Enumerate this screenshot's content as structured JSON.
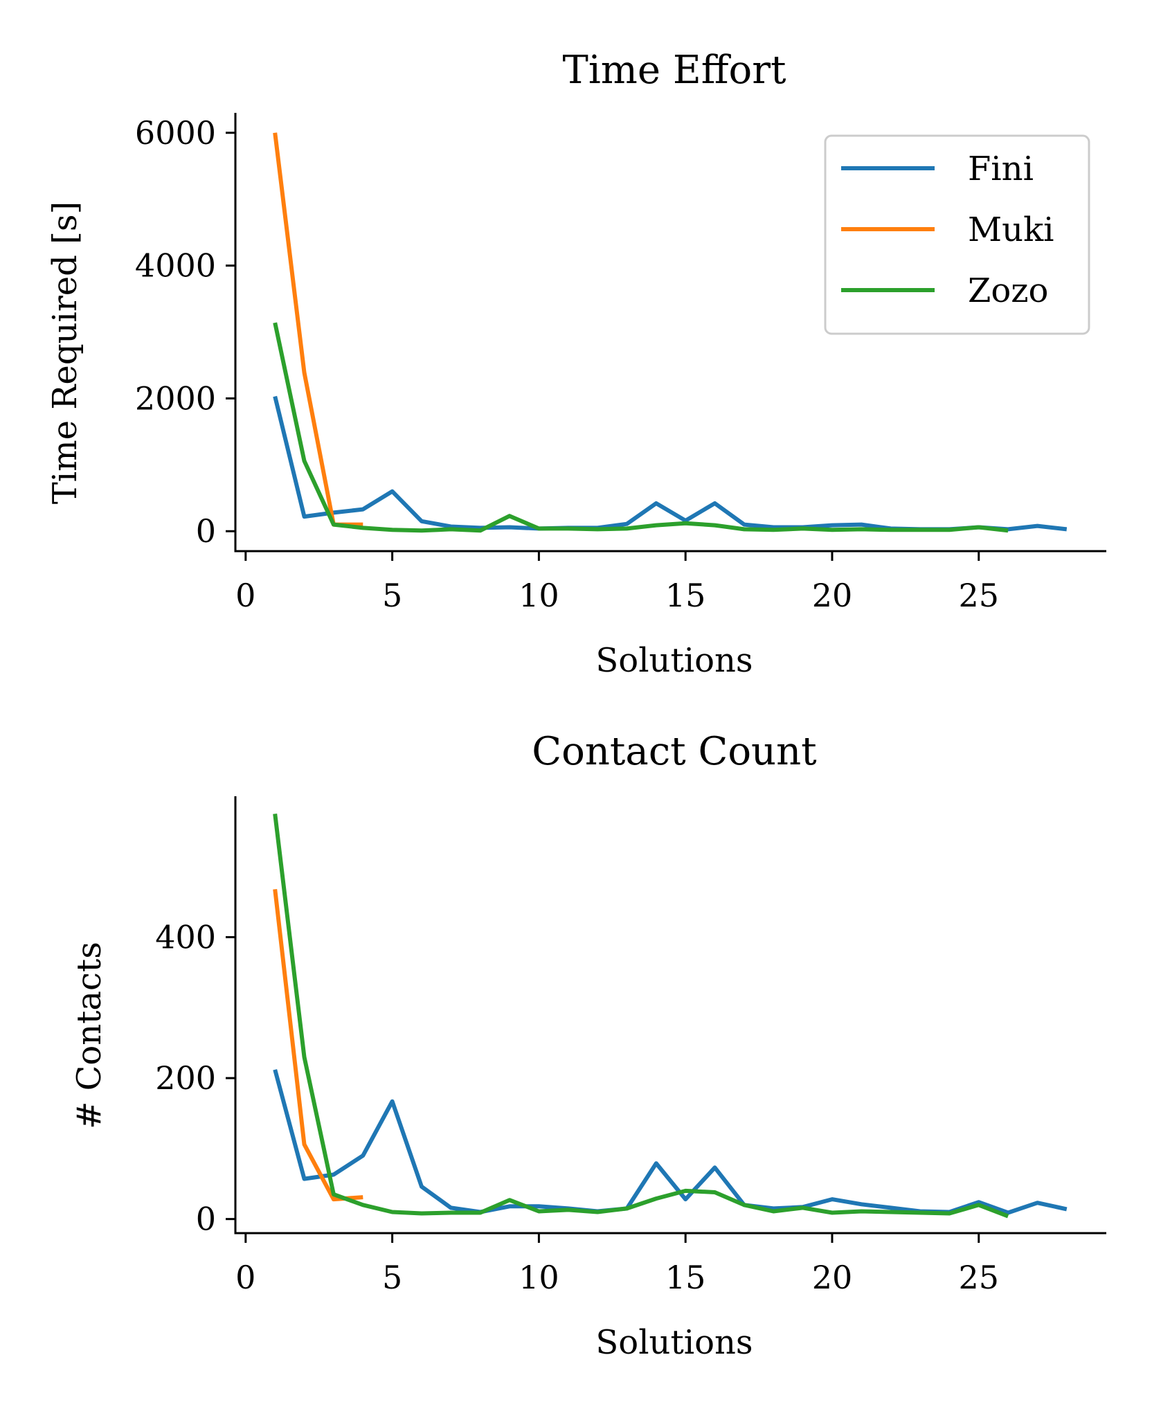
{
  "series_styles": [
    {
      "name": "Fini",
      "color": "#1f77b4"
    },
    {
      "name": "Muki",
      "color": "#ff7f0e"
    },
    {
      "name": "Zozo",
      "color": "#2ca02c"
    }
  ],
  "chart_data": [
    {
      "type": "line",
      "title": "Time Effort",
      "xlabel": "Solutions",
      "ylabel": "Time Required [s]",
      "xlim": [
        -0.35,
        29.35
      ],
      "ylim": [
        -300,
        6300
      ],
      "xticks": [
        0,
        5,
        10,
        15,
        20,
        25
      ],
      "yticks": [
        0,
        2000,
        4000,
        6000
      ],
      "legend": "top-right",
      "series": [
        {
          "name": "Fini",
          "x": [
            1,
            2,
            3,
            4,
            5,
            6,
            7,
            8,
            9,
            10,
            11,
            12,
            13,
            14,
            15,
            16,
            17,
            18,
            19,
            20,
            21,
            22,
            23,
            24,
            25,
            26,
            27,
            28
          ],
          "values": [
            2030,
            220,
            280,
            330,
            600,
            150,
            70,
            50,
            60,
            40,
            50,
            50,
            110,
            420,
            160,
            420,
            100,
            60,
            60,
            90,
            100,
            40,
            30,
            30,
            60,
            30,
            80,
            30
          ]
        },
        {
          "name": "Muki",
          "x": [
            1,
            2,
            3,
            4
          ],
          "values": [
            6000,
            2390,
            100,
            100
          ]
        },
        {
          "name": "Zozo",
          "x": [
            1,
            2,
            3,
            4,
            5,
            6,
            7,
            8,
            9,
            10,
            11,
            12,
            13,
            14,
            15,
            16,
            17,
            18,
            19,
            20,
            21,
            22,
            23,
            24,
            25,
            26
          ],
          "values": [
            3140,
            1060,
            100,
            50,
            20,
            10,
            30,
            10,
            230,
            40,
            40,
            30,
            40,
            90,
            120,
            90,
            30,
            20,
            40,
            20,
            30,
            20,
            20,
            20,
            60,
            10
          ]
        }
      ]
    },
    {
      "type": "line",
      "title": "Contact Count",
      "xlabel": "Solutions",
      "ylabel": "# Contacts",
      "xlim": [
        -0.35,
        29.35
      ],
      "ylim": [
        -20,
        600
      ],
      "xticks": [
        0,
        5,
        10,
        15,
        20,
        25
      ],
      "yticks": [
        0,
        200,
        400
      ],
      "series": [
        {
          "name": "Fini",
          "x": [
            1,
            2,
            3,
            4,
            5,
            6,
            7,
            8,
            9,
            10,
            11,
            12,
            13,
            14,
            15,
            16,
            17,
            18,
            19,
            20,
            21,
            22,
            23,
            24,
            25,
            26,
            27,
            28
          ],
          "values": [
            212,
            57,
            63,
            90,
            167,
            46,
            16,
            10,
            18,
            18,
            15,
            11,
            15,
            79,
            28,
            73,
            20,
            15,
            17,
            28,
            21,
            16,
            11,
            10,
            24,
            9,
            23,
            14
          ]
        },
        {
          "name": "Muki",
          "x": [
            1,
            2,
            3,
            4
          ],
          "values": [
            468,
            106,
            28,
            31
          ]
        },
        {
          "name": "Zozo",
          "x": [
            1,
            2,
            3,
            4,
            5,
            6,
            7,
            8,
            9,
            10,
            11,
            12,
            13,
            14,
            15,
            16,
            17,
            18,
            19,
            20,
            21,
            22,
            23,
            24,
            25,
            26
          ],
          "values": [
            575,
            230,
            35,
            20,
            10,
            8,
            9,
            9,
            27,
            11,
            13,
            10,
            15,
            29,
            40,
            38,
            20,
            11,
            16,
            9,
            11,
            10,
            9,
            8,
            20,
            4
          ]
        }
      ]
    }
  ]
}
